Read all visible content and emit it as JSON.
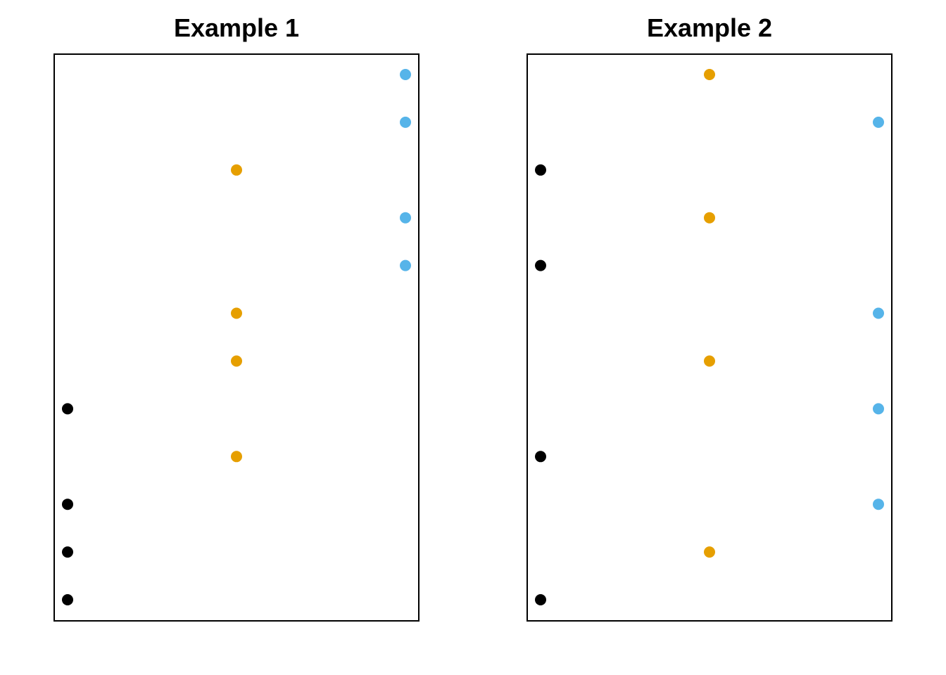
{
  "chart_data": [
    {
      "type": "scatter",
      "title": "Example 1",
      "xlim": [
        1,
        3
      ],
      "ylim": [
        1,
        12
      ],
      "grid": false,
      "axes_visible": false,
      "series": [
        {
          "color": "#000000",
          "points": [
            [
              1,
              5
            ],
            [
              1,
              3
            ],
            [
              1,
              2
            ],
            [
              1,
              1
            ]
          ]
        },
        {
          "color": "#E69F00",
          "points": [
            [
              2,
              10
            ],
            [
              2,
              7
            ],
            [
              2,
              6
            ],
            [
              2,
              4
            ]
          ]
        },
        {
          "color": "#56B4E9",
          "points": [
            [
              3,
              12
            ],
            [
              3,
              11
            ],
            [
              3,
              9
            ],
            [
              3,
              8
            ]
          ]
        }
      ]
    },
    {
      "type": "scatter",
      "title": "Example 2",
      "xlim": [
        1,
        3
      ],
      "ylim": [
        1,
        12
      ],
      "grid": false,
      "axes_visible": false,
      "series": [
        {
          "color": "#000000",
          "points": [
            [
              1,
              10
            ],
            [
              1,
              8
            ],
            [
              1,
              4
            ],
            [
              1,
              1
            ]
          ]
        },
        {
          "color": "#E69F00",
          "points": [
            [
              2,
              12
            ],
            [
              2,
              9
            ],
            [
              2,
              6
            ],
            [
              2,
              2
            ]
          ]
        },
        {
          "color": "#56B4E9",
          "points": [
            [
              3,
              11
            ],
            [
              3,
              7
            ],
            [
              3,
              5
            ],
            [
              3,
              3
            ]
          ]
        }
      ]
    }
  ]
}
